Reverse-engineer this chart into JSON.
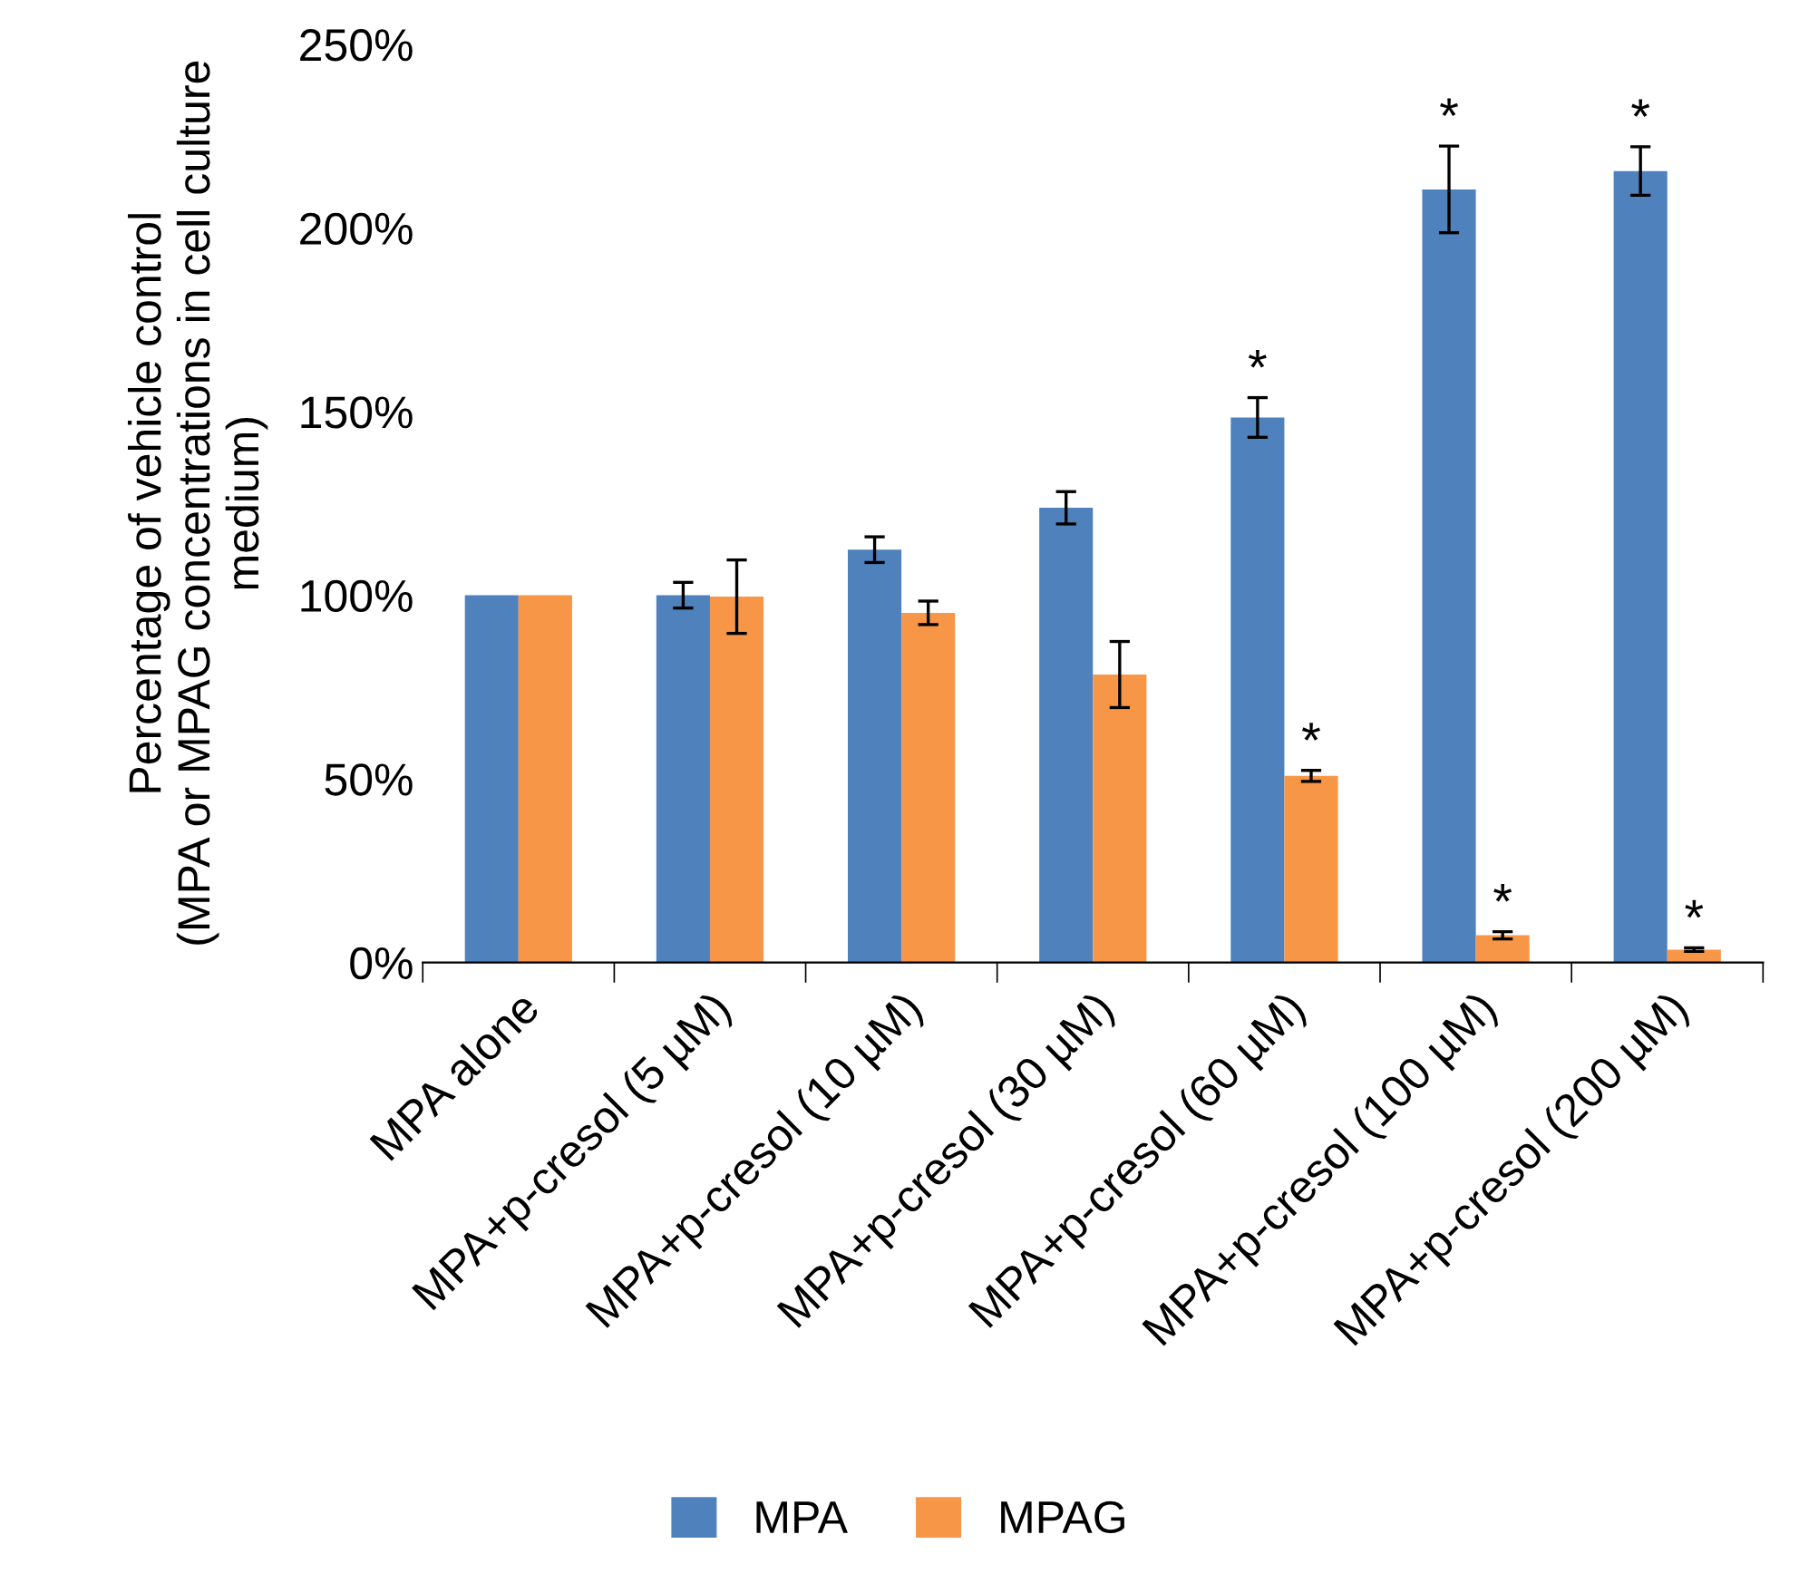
{
  "chart_data": {
    "type": "bar",
    "ylabel": "Percentage of vehicle control\n(MPA or MPAG concentrations in cell culture\nmedium)",
    "categories": [
      "MPA alone",
      "MPA+p-cresol (5 µM)",
      "MPA+p-cresol (10 µM)",
      "MPA+p-cresol (30 µM)",
      "MPA+p-cresol (60 µM)",
      "MPA+p-cresol (100 µM)",
      "MPA+p-cresol (200 µM)"
    ],
    "series": [
      {
        "name": "MPA",
        "color": "#4f81bd",
        "values": [
          100,
          100,
          112.4,
          123.8,
          148.4,
          210.5,
          215.5
        ],
        "errors": [
          null,
          3.5,
          3.5,
          4.4,
          5.4,
          11.8,
          6.6
        ]
      },
      {
        "name": "MPAG",
        "color": "#f79646",
        "values": [
          100,
          99.6,
          95.2,
          78.4,
          50.8,
          7.4,
          3.5
        ],
        "errors": [
          null,
          10,
          3.2,
          9,
          1.5,
          1,
          0.5
        ]
      }
    ],
    "annotations": [
      {
        "text": "*",
        "y": 148.4
      },
      {
        "text": "*",
        "y": 210.5
      },
      {
        "text": "*",
        "y": 215.5
      },
      {
        "text": "*",
        "y": 50.8
      },
      {
        "text": "*",
        "y": 7.4
      },
      {
        "text": "*",
        "y": 3.5
      }
    ],
    "ylim": [
      0,
      250
    ],
    "yticks": [
      {
        "value": 0,
        "label": "0%"
      },
      {
        "value": 50,
        "label": "50%"
      },
      {
        "value": 100,
        "label": "100%"
      },
      {
        "value": 150,
        "label": "150%"
      },
      {
        "value": 200,
        "label": "200%"
      },
      {
        "value": 250,
        "label": "250%"
      }
    ],
    "legend": "bottom"
  }
}
